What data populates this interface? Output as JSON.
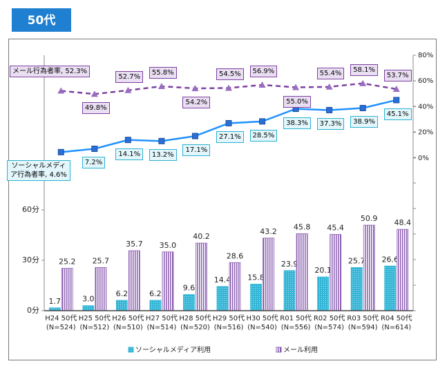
{
  "chart_data": {
    "type": "bar_line",
    "title": "50代",
    "categories": [
      "H24 50代",
      "H25 50代",
      "H26 50代",
      "H27 50代",
      "H28 50代",
      "H29 50代",
      "H30 50代",
      "R01 50代",
      "R02 50代",
      "R03 50代",
      "R04 50代"
    ],
    "sample_sizes": [
      "(N=524)",
      "(N=512)",
      "(N=510)",
      "(N=514)",
      "(N=520)",
      "(N=516)",
      "(N=540)",
      "(N=556)",
      "(N=574)",
      "(N=594)",
      "(N=614)"
    ],
    "ylim": [
      0,
      152
    ],
    "yticks": [
      {
        "value": 0,
        "label": "0分"
      },
      {
        "value": 30,
        "label": "30分"
      },
      {
        "value": 60,
        "label": "60分"
      }
    ],
    "y2lim": [
      -118.8,
      80
    ],
    "y2ticks": [
      {
        "value": 0,
        "label": "0%"
      },
      {
        "value": 20,
        "label": "20%"
      },
      {
        "value": 40,
        "label": "40%"
      },
      {
        "value": 60,
        "label": "60%"
      },
      {
        "value": 80,
        "label": "80%"
      }
    ],
    "grid": false,
    "legend": "bottom",
    "series": [
      {
        "name": "ソーシャルメディア利用",
        "kind": "bar",
        "color": "#33b5d6",
        "values": [
          1.7,
          3.0,
          6.2,
          6.2,
          9.6,
          14.4,
          15.8,
          23.9,
          20.1,
          25.7,
          26.6
        ],
        "value_labels": [
          "1.7",
          "3.0",
          "6.2",
          "6.2",
          "9.6",
          "14.4",
          "15.8",
          "23.9",
          "20.1",
          "25.7",
          "26.6"
        ]
      },
      {
        "name": "メール利用",
        "kind": "bar",
        "color": "#8a5cb0",
        "values": [
          25.2,
          25.7,
          35.7,
          35.0,
          40.2,
          28.6,
          43.2,
          45.8,
          45.4,
          50.9,
          48.4
        ],
        "value_labels": [
          "25.2",
          "25.7",
          "35.7",
          "35.0",
          "40.2",
          "28.6",
          "43.2",
          "45.8",
          "45.4",
          "50.9",
          "48.4"
        ]
      },
      {
        "kind": "line",
        "axis": "y2",
        "color": "#7b3fa0",
        "dashed": true,
        "marker": "triangle",
        "values": [
          52.3,
          49.8,
          52.7,
          55.8,
          54.2,
          54.5,
          56.9,
          55.0,
          55.4,
          58.1,
          53.7
        ],
        "value_labels": [
          "メール行為者率, 52.3%",
          "49.8%",
          "52.7%",
          "55.8%",
          "54.2%",
          "54.5%",
          "56.9%",
          "55.0%",
          "55.4%",
          "58.1%",
          "53.7%"
        ]
      },
      {
        "kind": "line",
        "axis": "y2",
        "color": "#1e90ff",
        "dashed": false,
        "marker": "square",
        "values": [
          4.6,
          7.2,
          14.1,
          13.2,
          17.1,
          27.1,
          28.5,
          38.3,
          37.3,
          38.9,
          45.1
        ],
        "value_labels": [
          "ソーシャルメディア行為者率, 4.6%",
          "7.2%",
          "14.1%",
          "13.2%",
          "17.1%",
          "27.1%",
          "28.5%",
          "38.3%",
          "37.3%",
          "38.9%",
          "45.1%"
        ]
      }
    ]
  }
}
